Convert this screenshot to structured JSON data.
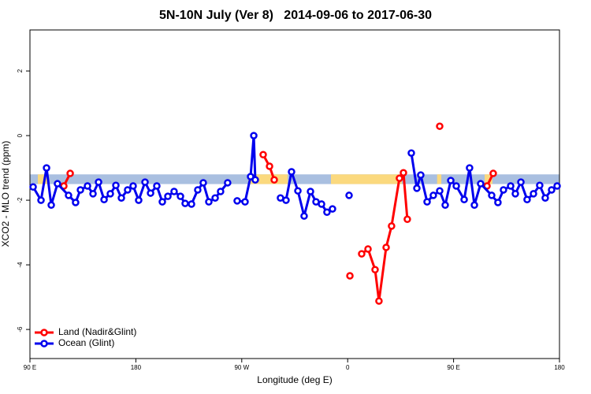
{
  "chart_data": {
    "type": "line",
    "title": "5N-10N July (Ver 8)   2014-09-06 to 2017-06-30",
    "x_label": "Longitude (deg E)",
    "y_label": "XCO2 - MLO trend (ppm)",
    "xlim": [
      90,
      540
    ],
    "xticks": [
      {
        "value": 90,
        "label": "90 E"
      },
      180,
      {
        "value": 270,
        "label": "90 W"
      },
      {
        "value": 360,
        "label": "0"
      },
      {
        "value": 450,
        "label": "90 E"
      },
      {
        "value": 540,
        "label": "180"
      }
    ],
    "ylim": [
      -6.9,
      3.27
    ],
    "yticks": [
      -6,
      -4,
      -2,
      0,
      2
    ],
    "legend": "bottom-left",
    "reference_band": {
      "ylim": [
        -1.5,
        -1.2
      ],
      "color": "#a9bfe0"
    },
    "land_band": {
      "color": "#fbd97e",
      "ranges": [
        [
          96.7,
          104.7
        ],
        [
          275.5,
          309
        ],
        [
          345.8,
          406
        ],
        [
          436,
          439.6
        ],
        [
          476.4,
          483
        ]
      ]
    },
    "series": [
      {
        "name": "Land (Nadir&Glint)",
        "color": "#ff0000",
        "x": [
          118.8,
          124.2,
          null,
          288.2,
          293.6,
          297.6,
          null,
          361.9,
          null,
          371.9,
          377.3,
          383.3,
          386.6,
          392.7,
          397.3,
          404,
          407.4,
          410.7,
          null,
          438.2,
          null,
          478.4,
          483.7
        ],
        "values": [
          -1.56,
          -1.17,
          null,
          -0.59,
          -0.95,
          -1.37,
          null,
          -4.34,
          null,
          -3.66,
          -3.51,
          -4.15,
          -5.12,
          -3.46,
          -2.8,
          -1.32,
          -1.15,
          -2.59,
          null,
          0.29,
          null,
          -1.56,
          -1.17
        ]
      },
      {
        "name": "Ocean (Glint)",
        "color": "#0000ee",
        "x": [
          92.7,
          99.4,
          104.1,
          108.1,
          113.4,
          122.8,
          128.8,
          132.9,
          138.9,
          143.6,
          148.3,
          153,
          158.3,
          163,
          167.7,
          173,
          177.7,
          182.4,
          187.8,
          192.5,
          197.8,
          202.5,
          207.2,
          212.5,
          217.9,
          221.9,
          227.3,
          232.6,
          237.3,
          242,
          247.4,
          252,
          258,
          null,
          266.1,
          272.8,
          277.5,
          280.2,
          281.5,
          null,
          302.9,
          307.6,
          312.3,
          317.7,
          323,
          328.4,
          333.1,
          337.8,
          342.4,
          347.1,
          null,
          361.2,
          null,
          414.1,
          418.8,
          422.1,
          427.5,
          432.8,
          438.2,
          442.9,
          447.6,
          452.3,
          459,
          463.6,
          467.7,
          473,
          482.4,
          487.7,
          492.4,
          498.5,
          502.5,
          507.2,
          512.5,
          517.9,
          523.2,
          527.9,
          533.3,
          538
        ],
        "values": [
          -1.59,
          -2.0,
          -1.0,
          -2.15,
          -1.49,
          -1.85,
          -2.07,
          -1.68,
          -1.56,
          -1.8,
          -1.44,
          -1.98,
          -1.8,
          -1.54,
          -1.93,
          -1.68,
          -1.56,
          -2.0,
          -1.44,
          -1.78,
          -1.56,
          -2.05,
          -1.88,
          -1.73,
          -1.88,
          -2.1,
          -2.12,
          -1.68,
          -1.46,
          -2.05,
          -1.93,
          -1.73,
          -1.46,
          null,
          -2.02,
          -2.05,
          -1.27,
          0.0,
          -1.37,
          null,
          -1.93,
          -2.0,
          -1.12,
          -1.71,
          -2.49,
          -1.73,
          -2.05,
          -2.12,
          -2.37,
          -2.27,
          null,
          -1.85,
          null,
          -0.54,
          -1.63,
          -1.22,
          -2.05,
          -1.85,
          -1.71,
          -2.15,
          -1.39,
          -1.56,
          -1.98,
          -1.0,
          -2.15,
          -1.49,
          -1.85,
          -2.07,
          -1.68,
          -1.56,
          -1.8,
          -1.44,
          -1.98,
          -1.8,
          -1.54,
          -1.93,
          -1.68,
          -1.56
        ]
      }
    ]
  }
}
